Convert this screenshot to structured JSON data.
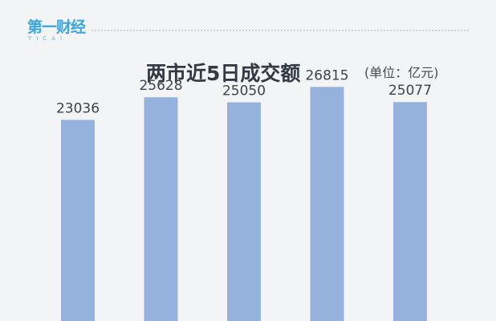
{
  "logo": {
    "main": "第一财经",
    "sub": "YICAI"
  },
  "chart_data": {
    "type": "bar",
    "title": "两市近5日成交额",
    "unit": "(单位：亿元)",
    "categories": [
      "",
      "",
      "",
      "",
      ""
    ],
    "values": [
      23036,
      25628,
      25050,
      26815,
      25077
    ],
    "data_labels": [
      "23036",
      "25628",
      "25050",
      "26815",
      "25077"
    ],
    "ylim": [
      0,
      28500
    ],
    "grid": false,
    "legend": "none",
    "colors": {
      "bar": "#94b2dc",
      "background": "#f2f4f6"
    }
  }
}
